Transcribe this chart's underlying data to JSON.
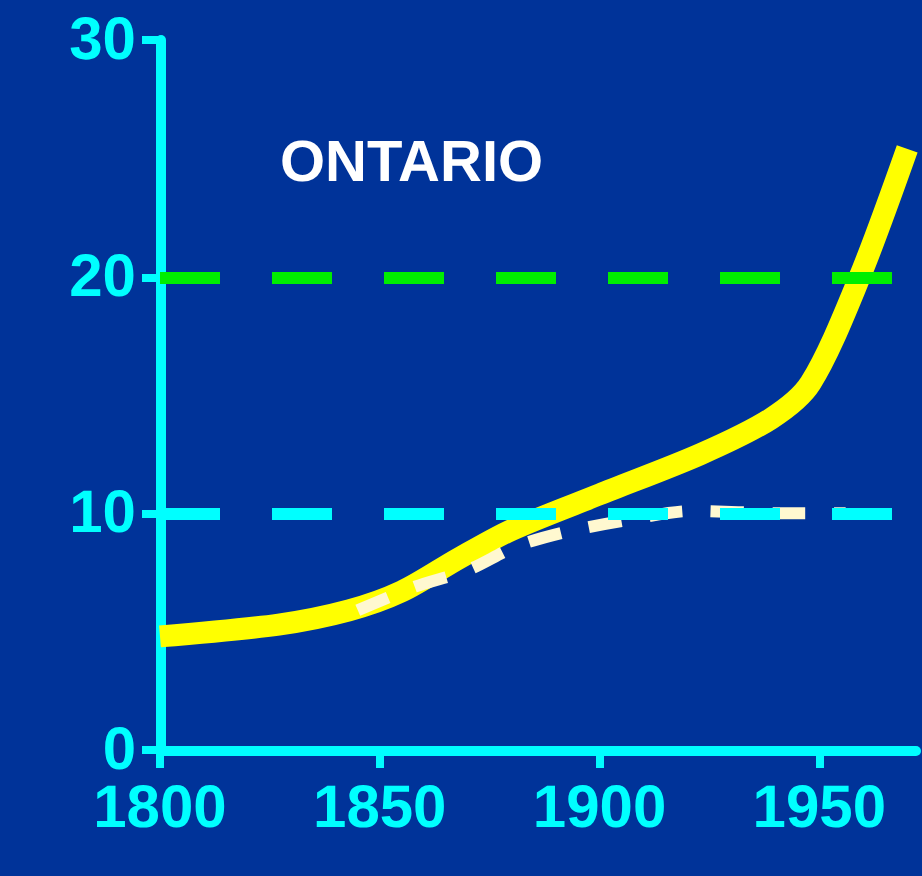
{
  "chart_data": {
    "type": "line",
    "title": "ONTARIO",
    "xlim": [
      1800,
      1972
    ],
    "ylim": [
      0,
      30
    ],
    "xticks": [
      1800,
      1850,
      1900,
      1950
    ],
    "yticks": [
      0,
      10,
      20,
      30
    ],
    "grid": false,
    "marker": "none",
    "series": [
      {
        "color": "#ffff00",
        "line_style": "solid",
        "x": [
          1800,
          1827,
          1843,
          1855,
          1868,
          1880,
          1900,
          1923,
          1939,
          1948,
          1959,
          1970
        ],
        "values": [
          4.8,
          5.3,
          5.9,
          6.7,
          8.1,
          9.3,
          10.8,
          12.5,
          14,
          15.5,
          19.9,
          25.4
        ]
      },
      {
        "color": "#fff8d0",
        "line_style": "dashed",
        "x": [
          1845,
          1858,
          1870,
          1881,
          1892,
          1906,
          1921,
          1942,
          1956
        ],
        "values": [
          5.9,
          6.9,
          7.6,
          8.6,
          9.2,
          9.7,
          10.1,
          10,
          10
        ]
      }
    ],
    "ref_lines": [
      {
        "axis": "y",
        "value": 20,
        "color": "#00ee00",
        "line_style": "dashed"
      },
      {
        "axis": "y",
        "value": 10,
        "color": "#00ffff",
        "line_style": "dashed"
      }
    ]
  }
}
